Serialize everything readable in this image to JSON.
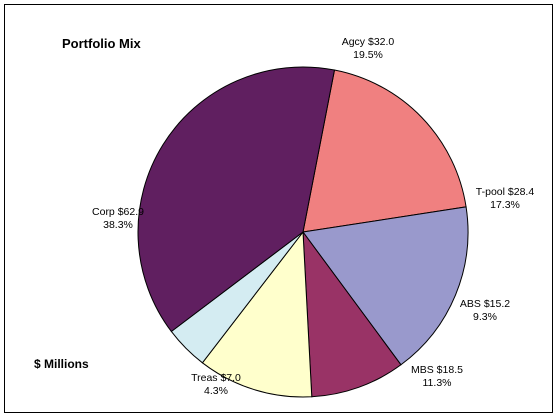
{
  "chart_data": {
    "type": "pie",
    "title": "Portfolio Mix",
    "units_label": "$ Millions",
    "slices": [
      {
        "label": "Agcy",
        "amount": "$32.0",
        "value": 32.0,
        "percent": "19.5%",
        "color": "#f08080"
      },
      {
        "label": "T-pool",
        "amount": "$28.4",
        "value": 28.4,
        "percent": "17.3%",
        "color": "#9999cc"
      },
      {
        "label": "ABS",
        "amount": "$15.2",
        "value": 15.2,
        "percent": "9.3%",
        "color": "#993366"
      },
      {
        "label": "MBS",
        "amount": "$18.5",
        "value": 18.5,
        "percent": "11.3%",
        "color": "#ffffcc"
      },
      {
        "label": "Treas",
        "amount": "$7.0",
        "value": 7.0,
        "percent": "4.3%",
        "color": "#d4ecf2"
      },
      {
        "label": "Corp",
        "amount": "$62.9",
        "value": 62.9,
        "percent": "38.3%",
        "color": "#601f60"
      }
    ]
  }
}
